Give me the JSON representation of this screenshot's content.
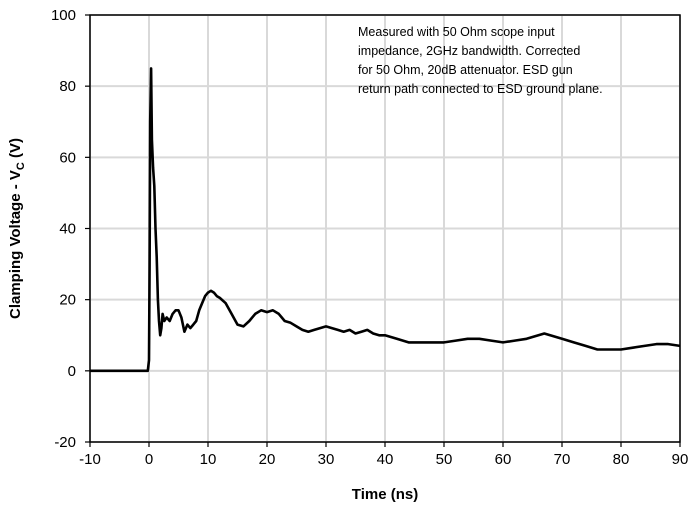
{
  "chart_data": {
    "type": "line",
    "xlabel": "Time (ns)",
    "ylabel": "Clamping Voltage - V",
    "ylabel_subscript": "C",
    "ylabel_unit": " (V)",
    "xlim": [
      -10,
      90
    ],
    "ylim": [
      -20,
      100
    ],
    "x_ticks": [
      "-10",
      "0",
      "10",
      "20",
      "30",
      "40",
      "50",
      "60",
      "70",
      "80",
      "90"
    ],
    "y_ticks": [
      "-20",
      "0",
      "20",
      "40",
      "60",
      "80",
      "100"
    ],
    "grid": true,
    "line_color": "#000000",
    "annotation": [
      "Measured with 50 Ohm scope input",
      "impedance, 2GHz bandwidth. Corrected",
      "for 50 Ohm, 20dB attenuator. ESD gun",
      "return path connected to ESD ground plane."
    ],
    "series": [
      {
        "x": [
          -10,
          -1,
          -0.2,
          0,
          0.1,
          0.2,
          0.35,
          0.5,
          0.7,
          0.9,
          1.1,
          1.3,
          1.5,
          1.7,
          1.9,
          2.1,
          2.3,
          2.6,
          3,
          3.5,
          4,
          4.5,
          5,
          5.5,
          6,
          6.5,
          7,
          7.5,
          8,
          8.5,
          9,
          9.5,
          10,
          10.5,
          11,
          11.5,
          12,
          13,
          14,
          15,
          16,
          17,
          18,
          19,
          20,
          21,
          22,
          23,
          24,
          25,
          26,
          27,
          28,
          29,
          30,
          31,
          32,
          33,
          34,
          35,
          36,
          37,
          38,
          39,
          40,
          42,
          44,
          46,
          48,
          50,
          52,
          54,
          56,
          58,
          60,
          62,
          64,
          66,
          67,
          68,
          70,
          72,
          74,
          76,
          78,
          80,
          82,
          84,
          86,
          88,
          90
        ],
        "values": [
          0,
          0,
          0,
          3,
          30,
          70,
          85,
          65,
          57,
          52,
          40,
          32,
          20,
          14,
          10,
          12,
          16,
          14,
          15,
          14,
          16,
          17,
          17,
          15,
          11,
          13,
          12,
          13,
          14,
          17,
          19,
          21,
          22,
          22.5,
          22,
          21,
          20.5,
          19,
          16,
          13,
          12.5,
          14,
          16,
          17,
          16.5,
          17,
          16,
          14,
          13.5,
          12.5,
          11.5,
          11,
          11.5,
          12,
          12.5,
          12,
          11.5,
          11,
          11.5,
          10.5,
          11,
          11.5,
          10.5,
          10,
          10,
          9,
          8,
          8,
          8,
          8,
          8.5,
          9,
          9,
          8.5,
          8,
          8.5,
          9,
          10,
          10.5,
          10,
          9,
          8,
          7,
          6,
          6,
          6,
          6.5,
          7,
          7.5,
          7.5,
          7
        ]
      }
    ]
  }
}
